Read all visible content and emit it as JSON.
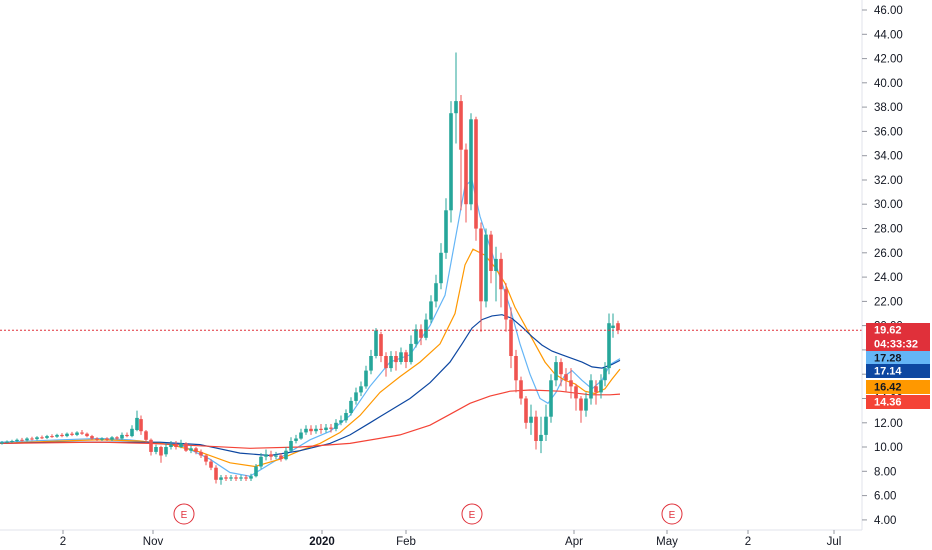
{
  "chart_data": {
    "type": "candlestick",
    "y_axis": {
      "range": [
        3.5,
        47
      ],
      "ticks": [
        "46.00",
        "44.00",
        "42.00",
        "40.00",
        "38.00",
        "36.00",
        "34.00",
        "32.00",
        "30.00",
        "28.00",
        "26.00",
        "24.00",
        "22.00",
        "20.00",
        "18.00",
        "16.00",
        "14.00",
        "12.00",
        "10.00",
        "8.00",
        "6.00",
        "4.00"
      ],
      "position": "right"
    },
    "x_axis": {
      "ticks": [
        "2",
        "Nov",
        "2020",
        "Feb",
        "Apr",
        "May",
        "2",
        "Jul"
      ],
      "bold_ticks": [
        "2020"
      ]
    },
    "last_price": {
      "value": "19.62",
      "countdown": "04:33:32",
      "color": "#e0303a"
    },
    "ma_labels": [
      {
        "value": "17.28",
        "color": "#64b5f6",
        "text_color": "#131722"
      },
      {
        "value": "17.14",
        "color": "#0d47a1",
        "text_color": "#ffffff"
      },
      {
        "value": "16.42",
        "color": "#ff9800",
        "text_color": "#131722"
      },
      {
        "value": "14.36",
        "color": "#f44336",
        "text_color": "#ffffff"
      }
    ],
    "moving_averages": [
      {
        "color": "#64b5f6",
        "points": [
          [
            0,
            10.4
          ],
          [
            60,
            10.6
          ],
          [
            100,
            10.7
          ],
          [
            130,
            10.6
          ],
          [
            150,
            10.4
          ],
          [
            180,
            10.2
          ],
          [
            210,
            9.0
          ],
          [
            230,
            7.9
          ],
          [
            250,
            7.6
          ],
          [
            270,
            8.6
          ],
          [
            290,
            9.6
          ],
          [
            310,
            10.6
          ],
          [
            330,
            11.3
          ],
          [
            350,
            12.6
          ],
          [
            370,
            15.0
          ],
          [
            390,
            17.0
          ],
          [
            410,
            17.6
          ],
          [
            430,
            20.0
          ],
          [
            445,
            22.5
          ],
          [
            455,
            27.0
          ],
          [
            465,
            31.5
          ],
          [
            472,
            32.0
          ],
          [
            480,
            29.0
          ],
          [
            490,
            26.5
          ],
          [
            500,
            24.0
          ],
          [
            510,
            21.5
          ],
          [
            520,
            18.5
          ],
          [
            530,
            16.0
          ],
          [
            540,
            14.0
          ],
          [
            548,
            13.6
          ],
          [
            556,
            14.5
          ],
          [
            564,
            15.8
          ],
          [
            572,
            16.3
          ],
          [
            582,
            15.5
          ],
          [
            592,
            14.8
          ],
          [
            602,
            15.5
          ],
          [
            610,
            16.8
          ],
          [
            620,
            17.28
          ]
        ]
      },
      {
        "color": "#ff9800",
        "points": [
          [
            0,
            10.3
          ],
          [
            60,
            10.5
          ],
          [
            100,
            10.6
          ],
          [
            140,
            10.5
          ],
          [
            170,
            10.2
          ],
          [
            200,
            9.6
          ],
          [
            230,
            8.7
          ],
          [
            255,
            8.4
          ],
          [
            280,
            9.0
          ],
          [
            300,
            9.7
          ],
          [
            320,
            10.3
          ],
          [
            340,
            11.2
          ],
          [
            360,
            12.6
          ],
          [
            380,
            14.5
          ],
          [
            400,
            15.8
          ],
          [
            420,
            17.0
          ],
          [
            440,
            18.5
          ],
          [
            455,
            21.0
          ],
          [
            465,
            25.0
          ],
          [
            473,
            26.3
          ],
          [
            485,
            25.8
          ],
          [
            495,
            24.8
          ],
          [
            505,
            23.5
          ],
          [
            515,
            21.5
          ],
          [
            525,
            20.0
          ],
          [
            535,
            18.5
          ],
          [
            545,
            17.0
          ],
          [
            555,
            16.0
          ],
          [
            565,
            15.5
          ],
          [
            575,
            15.2
          ],
          [
            585,
            14.6
          ],
          [
            595,
            14.4
          ],
          [
            605,
            14.8
          ],
          [
            612,
            15.6
          ],
          [
            620,
            16.42
          ]
        ]
      },
      {
        "color": "#0d47a1",
        "points": [
          [
            0,
            10.3
          ],
          [
            60,
            10.4
          ],
          [
            120,
            10.4
          ],
          [
            160,
            10.4
          ],
          [
            200,
            10.2
          ],
          [
            240,
            9.5
          ],
          [
            270,
            9.3
          ],
          [
            300,
            9.7
          ],
          [
            330,
            10.3
          ],
          [
            350,
            11.0
          ],
          [
            370,
            12.0
          ],
          [
            390,
            13.0
          ],
          [
            410,
            14.0
          ],
          [
            430,
            15.3
          ],
          [
            450,
            17.0
          ],
          [
            462,
            18.5
          ],
          [
            472,
            19.8
          ],
          [
            482,
            20.5
          ],
          [
            492,
            20.8
          ],
          [
            502,
            20.9
          ],
          [
            512,
            20.6
          ],
          [
            522,
            19.9
          ],
          [
            532,
            19.1
          ],
          [
            542,
            18.4
          ],
          [
            552,
            17.9
          ],
          [
            562,
            17.6
          ],
          [
            572,
            17.3
          ],
          [
            582,
            17.0
          ],
          [
            592,
            16.6
          ],
          [
            602,
            16.5
          ],
          [
            612,
            16.8
          ],
          [
            620,
            17.14
          ]
        ]
      },
      {
        "color": "#f44336",
        "points": [
          [
            0,
            10.3
          ],
          [
            100,
            10.4
          ],
          [
            150,
            10.3
          ],
          [
            200,
            10.1
          ],
          [
            250,
            9.9
          ],
          [
            300,
            10.0
          ],
          [
            350,
            10.3
          ],
          [
            400,
            11.0
          ],
          [
            430,
            11.8
          ],
          [
            450,
            12.7
          ],
          [
            470,
            13.6
          ],
          [
            490,
            14.2
          ],
          [
            510,
            14.6
          ],
          [
            530,
            14.7
          ],
          [
            560,
            14.6
          ],
          [
            590,
            14.3
          ],
          [
            610,
            14.3
          ],
          [
            620,
            14.36
          ]
        ]
      }
    ],
    "candles": [
      [
        2,
        10.3,
        10.4,
        10.5,
        10.2
      ],
      [
        7,
        10.4,
        10.45,
        10.55,
        10.3
      ],
      [
        12,
        10.45,
        10.5,
        10.6,
        10.35
      ],
      [
        17,
        10.5,
        10.6,
        10.7,
        10.4
      ],
      [
        22,
        10.6,
        10.55,
        10.75,
        10.45
      ],
      [
        27,
        10.55,
        10.7,
        10.8,
        10.45
      ],
      [
        32,
        10.7,
        10.65,
        10.85,
        10.55
      ],
      [
        37,
        10.65,
        10.8,
        10.9,
        10.55
      ],
      [
        42,
        10.8,
        10.75,
        10.95,
        10.65
      ],
      [
        47,
        10.75,
        10.9,
        11.0,
        10.65
      ],
      [
        52,
        10.9,
        10.85,
        11.05,
        10.75
      ],
      [
        57,
        10.85,
        11.0,
        11.1,
        10.75
      ],
      [
        62,
        11.0,
        10.9,
        11.15,
        10.8
      ],
      [
        67,
        10.9,
        11.1,
        11.2,
        10.8
      ],
      [
        72,
        11.1,
        11.0,
        11.25,
        10.9
      ],
      [
        77,
        11.0,
        11.2,
        11.3,
        10.9
      ],
      [
        82,
        11.2,
        11.1,
        11.4,
        11.0
      ],
      [
        87,
        11.1,
        10.9,
        11.2,
        10.8
      ],
      [
        92,
        10.9,
        10.7,
        11.0,
        10.6
      ],
      [
        97,
        10.7,
        10.6,
        10.8,
        10.5
      ],
      [
        102,
        10.6,
        10.7,
        10.8,
        10.5
      ],
      [
        107,
        10.7,
        10.6,
        10.8,
        10.5
      ],
      [
        112,
        10.6,
        10.8,
        10.9,
        10.5
      ],
      [
        117,
        10.8,
        10.7,
        10.9,
        10.6
      ],
      [
        122,
        10.7,
        11.0,
        11.2,
        10.6
      ],
      [
        127,
        11.0,
        10.9,
        11.2,
        10.8
      ],
      [
        132,
        10.9,
        11.5,
        11.8,
        10.8
      ],
      [
        137,
        11.4,
        12.4,
        13.0,
        11.3
      ],
      [
        141,
        12.3,
        11.3,
        12.6,
        11.0
      ],
      [
        146,
        11.3,
        10.6,
        11.4,
        10.4
      ],
      [
        151,
        10.6,
        9.6,
        10.7,
        9.3
      ],
      [
        156,
        9.6,
        10.0,
        10.2,
        9.4
      ],
      [
        161,
        10.0,
        9.3,
        10.1,
        8.7
      ],
      [
        166,
        9.4,
        10.0,
        10.3,
        9.2
      ],
      [
        171,
        10.0,
        10.2,
        10.5,
        9.8
      ],
      [
        176,
        10.2,
        10.0,
        10.5,
        9.8
      ],
      [
        181,
        10.0,
        10.3,
        10.6,
        9.9
      ],
      [
        186,
        10.3,
        9.7,
        10.4,
        9.6
      ],
      [
        191,
        9.7,
        9.9,
        10.1,
        9.5
      ],
      [
        196,
        9.9,
        9.6,
        10.0,
        9.4
      ],
      [
        201,
        9.6,
        9.3,
        9.8,
        9.1
      ],
      [
        206,
        9.3,
        8.8,
        9.4,
        8.5
      ],
      [
        211,
        8.8,
        8.3,
        9.0,
        8.1
      ],
      [
        216,
        8.3,
        7.3,
        8.5,
        7.0
      ],
      [
        221,
        7.3,
        7.5,
        7.7,
        6.9
      ],
      [
        226,
        7.5,
        7.4,
        7.7,
        7.2
      ],
      [
        231,
        7.4,
        7.5,
        7.7,
        7.2
      ],
      [
        236,
        7.5,
        7.4,
        7.7,
        7.2
      ],
      [
        241,
        7.4,
        7.5,
        7.7,
        7.2
      ],
      [
        246,
        7.5,
        7.4,
        7.7,
        7.2
      ],
      [
        251,
        7.4,
        7.6,
        7.8,
        7.2
      ],
      [
        256,
        7.6,
        8.4,
        8.6,
        7.5
      ],
      [
        261,
        8.4,
        9.2,
        9.5,
        8.2
      ],
      [
        266,
        9.2,
        9.4,
        9.8,
        8.9
      ],
      [
        271,
        9.4,
        9.2,
        9.7,
        8.9
      ],
      [
        276,
        9.2,
        9.3,
        9.6,
        9.0
      ],
      [
        281,
        9.3,
        9.0,
        9.5,
        8.8
      ],
      [
        286,
        9.0,
        9.7,
        10.0,
        8.9
      ],
      [
        291,
        9.7,
        10.5,
        10.8,
        9.6
      ],
      [
        296,
        10.5,
        10.7,
        11.0,
        10.3
      ],
      [
        301,
        10.7,
        11.2,
        11.5,
        10.6
      ],
      [
        306,
        11.2,
        11.5,
        11.8,
        11.0
      ],
      [
        311,
        11.5,
        11.3,
        11.8,
        11.0
      ],
      [
        316,
        11.3,
        11.5,
        11.8,
        11.1
      ],
      [
        321,
        11.5,
        11.4,
        11.9,
        11.1
      ],
      [
        326,
        11.4,
        11.6,
        11.9,
        11.2
      ],
      [
        331,
        11.6,
        11.5,
        11.9,
        11.2
      ],
      [
        336,
        11.5,
        12.0,
        12.3,
        11.3
      ],
      [
        341,
        12.0,
        12.2,
        12.6,
        11.8
      ],
      [
        346,
        12.2,
        12.8,
        13.1,
        12.0
      ],
      [
        351,
        12.8,
        13.8,
        14.1,
        12.6
      ],
      [
        356,
        13.8,
        14.5,
        14.9,
        13.5
      ],
      [
        361,
        14.5,
        15.0,
        15.4,
        14.2
      ],
      [
        366,
        15.0,
        16.3,
        16.7,
        14.8
      ],
      [
        371,
        16.3,
        17.5,
        18.0,
        16.0
      ],
      [
        376,
        17.5,
        19.6,
        19.8,
        17.3
      ],
      [
        381,
        19.3,
        17.5,
        19.5,
        17.0
      ],
      [
        386,
        17.5,
        16.5,
        17.8,
        15.8
      ],
      [
        391,
        16.5,
        17.5,
        17.9,
        16.2
      ],
      [
        396,
        17.5,
        17.0,
        17.9,
        16.3
      ],
      [
        401,
        17.0,
        17.8,
        18.2,
        16.8
      ],
      [
        406,
        17.8,
        17.0,
        18.0,
        16.5
      ],
      [
        411,
        17.0,
        18.5,
        19.2,
        16.8
      ],
      [
        416,
        18.5,
        19.7,
        20.1,
        18.2
      ],
      [
        421,
        19.7,
        19.0,
        20.1,
        18.4
      ],
      [
        426,
        19.0,
        20.5,
        21.0,
        18.8
      ],
      [
        431,
        20.5,
        22.0,
        22.5,
        20.2
      ],
      [
        436,
        22.0,
        23.5,
        24.2,
        21.5
      ],
      [
        441,
        23.5,
        26.0,
        26.8,
        23.0
      ],
      [
        446,
        26.0,
        29.5,
        30.5,
        25.5
      ],
      [
        451,
        29.5,
        37.5,
        38.5,
        28.5
      ],
      [
        456,
        37.5,
        38.5,
        42.5,
        35.0
      ],
      [
        461,
        38.5,
        34.5,
        39.0,
        29.5
      ],
      [
        466,
        34.5,
        30.0,
        35.0,
        28.5
      ],
      [
        471,
        30.0,
        37.0,
        37.5,
        29.5
      ],
      [
        476,
        37.0,
        28.0,
        37.2,
        27.0
      ],
      [
        481,
        28.0,
        22.0,
        28.5,
        19.5
      ],
      [
        486,
        22.0,
        27.5,
        28.0,
        21.5
      ],
      [
        491,
        27.5,
        24.5,
        27.8,
        23.5
      ],
      [
        496,
        24.5,
        25.5,
        26.5,
        22.0
      ],
      [
        501,
        25.5,
        23.0,
        26.0,
        21.5
      ],
      [
        506,
        23.0,
        20.5,
        23.5,
        19.5
      ],
      [
        511,
        20.5,
        17.5,
        21.5,
        16.5
      ],
      [
        516,
        17.5,
        15.5,
        18.0,
        14.5
      ],
      [
        521,
        15.5,
        14.0,
        15.8,
        13.5
      ],
      [
        526,
        14.0,
        12.0,
        14.2,
        11.5
      ],
      [
        531,
        12.0,
        12.5,
        13.5,
        11.0
      ],
      [
        536,
        12.5,
        10.5,
        13.0,
        9.8
      ],
      [
        541,
        10.5,
        11.0,
        12.5,
        9.5
      ],
      [
        546,
        11.0,
        12.5,
        13.5,
        10.5
      ],
      [
        551,
        12.5,
        15.5,
        16.0,
        12.0
      ],
      [
        556,
        15.5,
        17.0,
        17.5,
        15.0
      ],
      [
        561,
        17.0,
        16.0,
        17.3,
        15.0
      ],
      [
        566,
        16.0,
        15.5,
        16.5,
        14.5
      ],
      [
        571,
        15.5,
        15.0,
        16.5,
        14.0
      ],
      [
        576,
        15.0,
        14.0,
        15.2,
        13.0
      ],
      [
        581,
        14.0,
        13.0,
        14.2,
        12.0
      ],
      [
        586,
        13.0,
        14.0,
        14.5,
        12.5
      ],
      [
        591,
        14.0,
        15.5,
        16.0,
        13.5
      ],
      [
        596,
        15.0,
        14.5,
        15.5,
        13.5
      ],
      [
        601,
        14.5,
        15.5,
        16.0,
        14.0
      ],
      [
        605,
        15.5,
        16.5,
        17.0,
        15.0
      ],
      [
        609,
        16.5,
        20.2,
        21.0,
        16.0
      ],
      [
        613,
        19.8,
        20.0,
        21.0,
        19.0
      ],
      [
        618,
        20.2,
        19.62,
        20.4,
        19.3
      ]
    ],
    "up_color": "#26a69a",
    "down_color": "#ef5350",
    "earnings_markers": [
      {
        "label": "E"
      },
      {
        "label": "E"
      },
      {
        "label": "E"
      }
    ],
    "grid": false
  }
}
